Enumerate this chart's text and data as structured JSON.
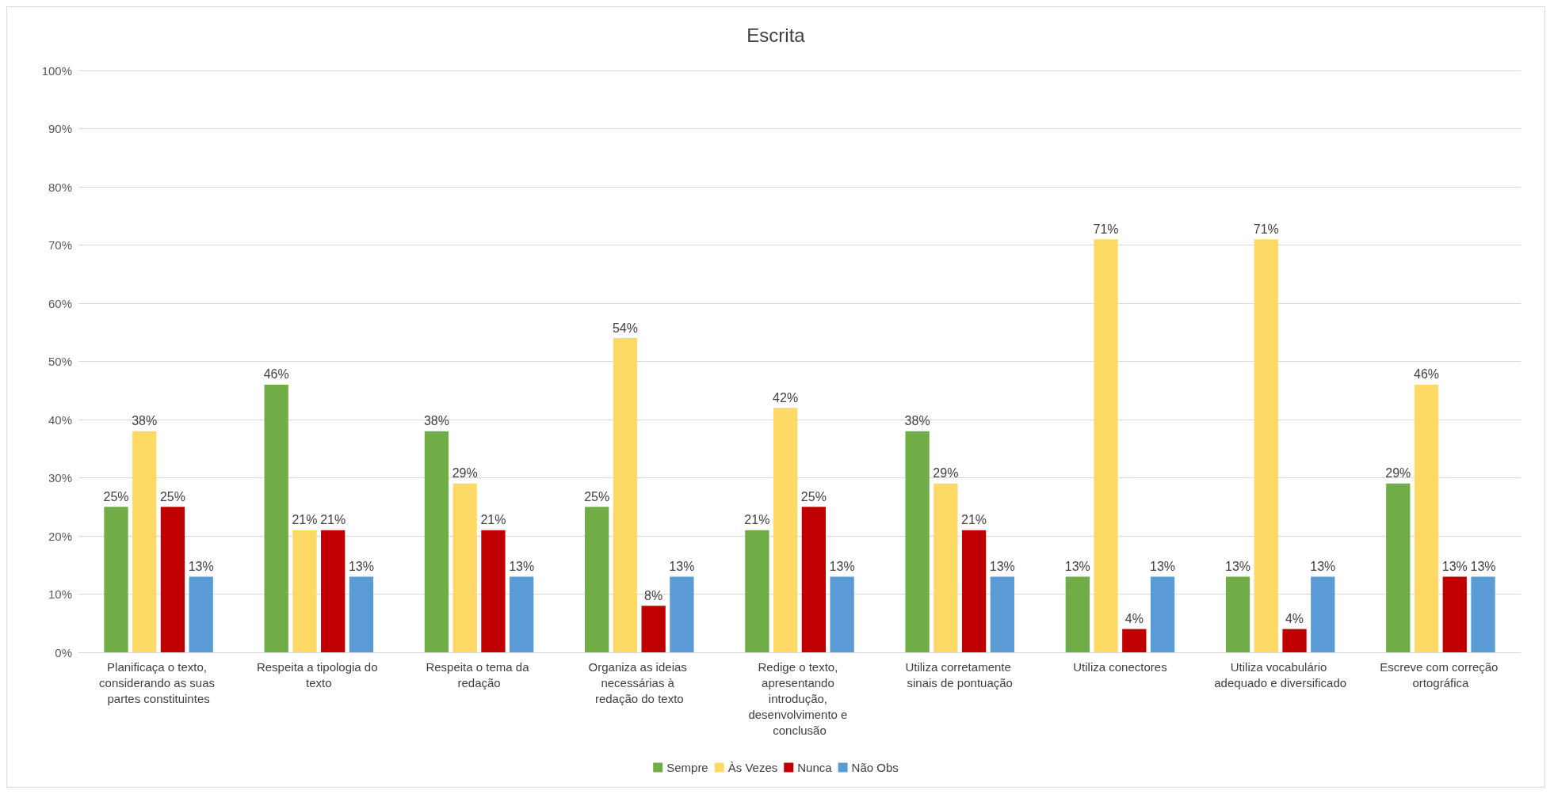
{
  "chart_data": {
    "type": "bar",
    "title": "Escrita",
    "categories": [
      "Planificaça o texto, considerando as suas partes constituintes",
      "Respeita a tipologia do texto",
      "Respeita o tema da redação",
      "Organiza as ideias necessárias à redação do texto",
      "Redige o texto, apresentando introdução, desenvolvimento e conclusão",
      "Utiliza corretamente sinais de pontuação",
      "Utiliza conectores",
      "Utiliza vocabulário adequado e diversificado",
      "Escreve com correção ortográfica"
    ],
    "series": [
      {
        "name": "Sempre",
        "color": "#70ad47",
        "values": [
          25,
          46,
          38,
          25,
          21,
          38,
          13,
          13,
          29
        ],
        "value_labels": [
          "25%",
          "46%",
          "38%",
          "25%",
          "21%",
          "38%",
          "13%",
          "13%",
          "29%"
        ]
      },
      {
        "name": "Às Vezes",
        "color": "#ffd966",
        "values": [
          38,
          21,
          29,
          54,
          42,
          29,
          71,
          71,
          46
        ],
        "value_labels": [
          "38%",
          "21%",
          "29%",
          "54%",
          "42%",
          "29%",
          "71%",
          "71%",
          "46%"
        ]
      },
      {
        "name": "Nunca",
        "color": "#c00000",
        "values": [
          25,
          21,
          21,
          8,
          25,
          21,
          4,
          4,
          13
        ],
        "value_labels": [
          "25%",
          "21%",
          "21%",
          "8%",
          "25%",
          "21%",
          "4%",
          "4%",
          "13%"
        ]
      },
      {
        "name": "Não Obs",
        "color": "#5b9bd5",
        "values": [
          13,
          13,
          13,
          13,
          13,
          13,
          13,
          13,
          13
        ],
        "value_labels": [
          "13%",
          "13%",
          "13%",
          "13%",
          "13%",
          "13%",
          "13%",
          "13%",
          "13%"
        ]
      }
    ],
    "ylim": [
      0,
      100
    ],
    "yticks": [
      {
        "value": 0,
        "label": "0%"
      },
      {
        "value": 10,
        "label": "10%"
      },
      {
        "value": 20,
        "label": "20%"
      },
      {
        "value": 30,
        "label": "30%"
      },
      {
        "value": 40,
        "label": "40%"
      },
      {
        "value": 50,
        "label": "50%"
      },
      {
        "value": 60,
        "label": "60%"
      },
      {
        "value": 70,
        "label": "70%"
      },
      {
        "value": 80,
        "label": "80%"
      },
      {
        "value": 90,
        "label": "90%"
      },
      {
        "value": 100,
        "label": "100%"
      }
    ],
    "grid": "y",
    "legend": "bottom"
  }
}
